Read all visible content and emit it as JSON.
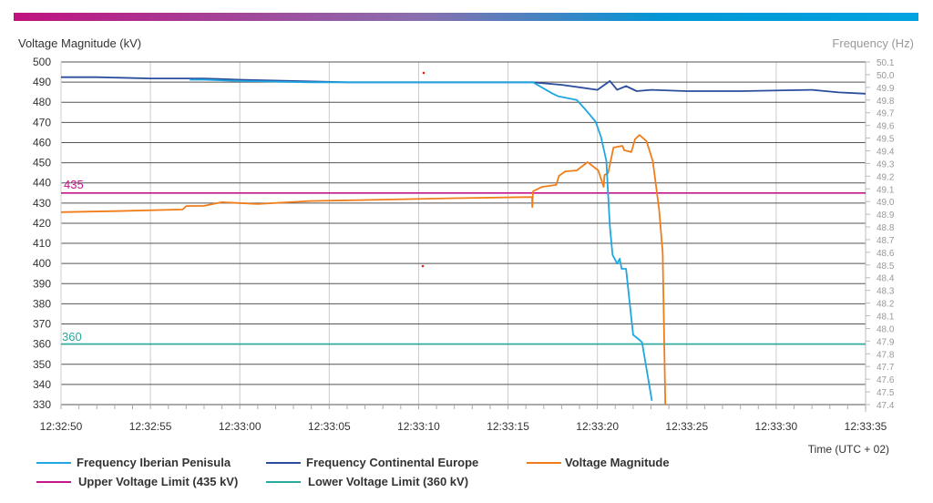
{
  "chart_data": {
    "type": "line",
    "ylabel": "Voltage Magnitude (kV)",
    "y2label": "Frequency (Hz)",
    "xlabel": "Time (UTC + 02)",
    "ylim": [
      330,
      500
    ],
    "y2lim": [
      47.4,
      50.1
    ],
    "xlim": [
      0,
      45
    ],
    "grid": true,
    "legend_position": "bottom",
    "y_ticks": [
      "500",
      "490",
      "480",
      "470",
      "460",
      "450",
      "440",
      "430",
      "420",
      "410",
      "400",
      "390",
      "380",
      "370",
      "360",
      "350",
      "340",
      "330"
    ],
    "y2_ticks": [
      "50.1",
      "50.0",
      "49.9",
      "49.8",
      "49.7",
      "49.6",
      "49.5",
      "49.4",
      "49.3",
      "49.2",
      "49.1",
      "49.0",
      "48.9",
      "48.8",
      "48.7",
      "48.6",
      "48.5",
      "48.4",
      "48.3",
      "48.2",
      "48.1",
      "48.0",
      "47.9",
      "47.8",
      "47.7",
      "47.6",
      "47.5",
      "47.4"
    ],
    "x_ticks": [
      "12:32:50",
      "12:32:55",
      "12:33:00",
      "12:33:05",
      "12:33:10",
      "12:33:15",
      "12:33:20",
      "12:33:25",
      "12:33:30",
      "12:33:35"
    ],
    "x_unit_note": "x values are seconds after 12:32:50",
    "series": [
      {
        "name": "Frequency Iberian Penisula",
        "axis": "right",
        "color": "#1ea7e1",
        "x": [
          7.2,
          8,
          10,
          14,
          18,
          22,
          26.4,
          27.5,
          27.8,
          28.85,
          29.3,
          29.9,
          30.2,
          30.5,
          30.6,
          30.7,
          30.85,
          31.1,
          31.25,
          31.35,
          31.6,
          32.0,
          32.35,
          32.5,
          33.05
        ],
        "y": [
          49.96,
          49.96,
          49.95,
          49.94,
          49.94,
          49.94,
          49.94,
          49.85,
          49.83,
          49.8,
          49.73,
          49.63,
          49.51,
          49.32,
          49.06,
          48.8,
          48.58,
          48.51,
          48.55,
          48.47,
          48.47,
          47.95,
          47.91,
          47.89,
          47.43
        ]
      },
      {
        "name": "Frequency Continental Europe",
        "axis": "right",
        "color": "#2b4d9c",
        "x": [
          0,
          2,
          5,
          8,
          10,
          13,
          16,
          20,
          24,
          26.4,
          28,
          30,
          30.7,
          31.1,
          31.6,
          32.2,
          33,
          35,
          38,
          42,
          43.5,
          45
        ],
        "y": [
          49.98,
          49.98,
          49.97,
          49.97,
          49.96,
          49.95,
          49.94,
          49.94,
          49.94,
          49.94,
          49.92,
          49.88,
          49.95,
          49.88,
          49.91,
          49.87,
          49.88,
          49.87,
          49.87,
          49.88,
          49.86,
          49.85
        ]
      },
      {
        "name": "Voltage Magnitude",
        "axis": "left",
        "color": "#f07d1a",
        "x": [
          0,
          3,
          6.8,
          7.0,
          8,
          9,
          11,
          13.9,
          17,
          22,
          26.35,
          26.36,
          26.4,
          26.9,
          27.7,
          27.85,
          28.2,
          28.85,
          29.45,
          30.05,
          30.35,
          30.4,
          30.6,
          30.9,
          31.4,
          31.5,
          31.9,
          32.1,
          32.35,
          32.75,
          33.1,
          33.45,
          33.65,
          33.8
        ],
        "y": [
          425.5,
          426,
          426.8,
          428.5,
          428.6,
          430.4,
          429.5,
          431,
          431.5,
          432.4,
          433,
          428,
          435.8,
          438,
          439,
          443.5,
          445.7,
          446.2,
          450.3,
          446.2,
          438,
          444,
          444.8,
          457.5,
          458.4,
          456.2,
          455.3,
          461.6,
          463.8,
          460.7,
          450.7,
          426.8,
          405.5,
          330
        ]
      },
      {
        "name": "Upper Voltage Limit (435 kV)",
        "axis": "left",
        "color": "#c4168a",
        "x": [
          0,
          45
        ],
        "y": [
          435,
          435
        ]
      },
      {
        "name": "Lower Voltage Limit (360 kV)",
        "axis": "left",
        "color": "#27a99b",
        "x": [
          0,
          45
        ],
        "y": [
          360,
          360
        ]
      }
    ],
    "annotations": [
      "435",
      "360"
    ]
  }
}
